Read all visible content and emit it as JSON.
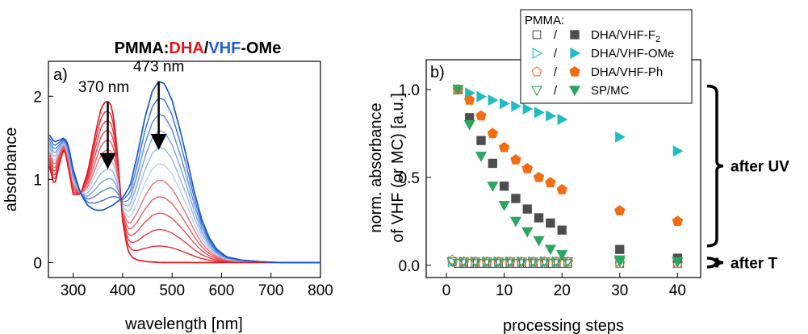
{
  "figure": {
    "title_parts": [
      {
        "text": "PMMA:",
        "color": "#000000"
      },
      {
        "text": "DHA",
        "color": "#e8141b"
      },
      {
        "text": "/",
        "color": "#000000"
      },
      {
        "text": "VHF",
        "color": "#1f5fd6"
      },
      {
        "text": "-OMe",
        "color": "#000000"
      }
    ]
  },
  "chart_data": [
    {
      "type": "line",
      "panel_label": "a)",
      "xlabel": "wavelength [nm]",
      "ylabel": "absorbance",
      "xlim": [
        250,
        800
      ],
      "ylim": [
        -0.18,
        2.42
      ],
      "x_ticks": [
        300,
        400,
        500,
        600,
        700,
        800
      ],
      "y_ticks": [
        0,
        1,
        2
      ],
      "grid": false,
      "annotations": [
        {
          "text": "370 nm",
          "x": 370,
          "color": "#e8141b"
        },
        {
          "text": "473 nm",
          "x": 473,
          "color": "#1f5fd6"
        }
      ],
      "arrows": [
        {
          "x": 370,
          "from": 1.94,
          "to": 1.22
        },
        {
          "x": 473,
          "from": 2.18,
          "to": 1.45
        }
      ],
      "colors": {
        "dha_start": "#f07a80",
        "dha_end": "#e01a22",
        "vhf_start": "#c9dcf5",
        "vhf_end": "#1657cc"
      },
      "series": [
        {
          "name": "",
          "color": "#1657cc",
          "x": [
            250,
            262,
            275,
            282,
            290,
            300,
            315,
            330,
            345,
            360,
            380,
            400,
            415,
            430,
            445,
            460,
            473,
            485,
            500,
            515,
            530,
            545,
            560,
            575,
            590,
            610,
            640,
            680,
            720,
            760,
            800
          ],
          "y": [
            1.55,
            1.45,
            1.48,
            1.5,
            1.42,
            1.12,
            0.83,
            0.68,
            0.63,
            0.63,
            0.69,
            0.78,
            0.92,
            1.3,
            1.74,
            2.06,
            2.18,
            2.15,
            1.95,
            1.62,
            1.25,
            0.85,
            0.52,
            0.3,
            0.16,
            0.07,
            0.03,
            0.01,
            0.0,
            0.0,
            0.0
          ]
        },
        {
          "name": "",
          "color": "#e01a22",
          "x": [
            250,
            262,
            275,
            282,
            290,
            300,
            315,
            330,
            345,
            355,
            362,
            370,
            378,
            385,
            393,
            400,
            410,
            420,
            430,
            450,
            480,
            520,
            600,
            700,
            800
          ],
          "y": [
            1.2,
            0.92,
            1.25,
            1.38,
            1.15,
            0.82,
            0.82,
            1.1,
            1.55,
            1.82,
            1.92,
            1.94,
            1.88,
            1.6,
            1.05,
            0.5,
            0.15,
            0.06,
            0.03,
            0.01,
            0.0,
            0.0,
            0.0,
            0.0,
            0.0
          ]
        }
      ]
    },
    {
      "type": "scatter",
      "panel_label": "b)",
      "xlabel": "processing steps",
      "ylabel_lines": [
        "norm. absorbance",
        "of VHF (or MC) [a.u.]"
      ],
      "xlim": [
        -3.5,
        44
      ],
      "ylim": [
        -0.07,
        1.17
      ],
      "x_ticks": [
        0,
        10,
        20,
        30,
        40
      ],
      "y_ticks": [
        0.0,
        0.5,
        1.0
      ],
      "y_tick_labels": [
        "0.0",
        "0.5",
        "1.0"
      ],
      "grid": false,
      "legend_title": "PMMA:",
      "legend_position": "top",
      "series": [
        {
          "name": "DHA/VHF-F",
          "subscript": "2",
          "marker": "square",
          "color": "#4d4d4d",
          "open_x": [
            1,
            2,
            3,
            4,
            5,
            6,
            7,
            8,
            9,
            10,
            11,
            12,
            13,
            14,
            15,
            16,
            17,
            18,
            19,
            20,
            21,
            30,
            40
          ],
          "open_y": [
            0.02,
            0.01,
            0.01,
            0.01,
            0.01,
            0.01,
            0.01,
            0.01,
            0.01,
            0.01,
            0.01,
            0.01,
            0.01,
            0.01,
            0.01,
            0.01,
            0.01,
            0.01,
            0.01,
            0.01,
            0.01,
            0.01,
            0.01
          ],
          "filled_x": [
            2,
            4,
            6,
            8,
            10,
            12,
            14,
            16,
            18,
            20,
            30,
            40
          ],
          "filled_y": [
            1.0,
            0.84,
            0.71,
            0.58,
            0.45,
            0.38,
            0.32,
            0.27,
            0.24,
            0.2,
            0.09,
            0.04
          ]
        },
        {
          "name": "DHA/VHF-OMe",
          "marker": "triangle-right",
          "color": "#1fbcc4",
          "open_x": [
            1,
            3,
            5,
            7,
            9,
            11,
            13,
            15,
            17,
            19,
            21,
            30,
            40
          ],
          "open_y": [
            0.02,
            0.02,
            0.02,
            0.02,
            0.02,
            0.02,
            0.02,
            0.02,
            0.02,
            0.02,
            0.02,
            0.02,
            0.02
          ],
          "filled_x": [
            2,
            4,
            6,
            8,
            10,
            12,
            14,
            16,
            18,
            20,
            30,
            40
          ],
          "filled_y": [
            1.0,
            0.98,
            0.96,
            0.94,
            0.92,
            0.905,
            0.89,
            0.87,
            0.85,
            0.83,
            0.73,
            0.65
          ]
        },
        {
          "name": "DHA/VHF-Ph",
          "marker": "pentagon",
          "color": "#f26d12",
          "open_x": [
            1,
            3,
            5,
            7,
            9,
            11,
            13,
            15,
            17,
            19,
            21,
            30,
            40
          ],
          "open_y": [
            0.03,
            0.02,
            0.02,
            0.02,
            0.02,
            0.02,
            0.02,
            0.02,
            0.02,
            0.02,
            0.02,
            0.01,
            0.01
          ],
          "filled_x": [
            2,
            4,
            6,
            8,
            10,
            12,
            14,
            16,
            18,
            20,
            30,
            40
          ],
          "filled_y": [
            1.0,
            0.94,
            0.85,
            0.75,
            0.67,
            0.6,
            0.55,
            0.5,
            0.47,
            0.43,
            0.31,
            0.25
          ]
        },
        {
          "name": "SP/MC",
          "marker": "triangle-down",
          "color": "#2ca55e",
          "open_x": [
            1,
            3,
            5,
            7,
            9,
            11,
            13,
            15,
            17,
            19,
            21,
            30,
            40
          ],
          "open_y": [
            0.02,
            0.02,
            0.02,
            0.02,
            0.02,
            0.02,
            0.02,
            0.02,
            0.02,
            0.02,
            0.02,
            0.02,
            0.02
          ],
          "filled_x": [
            2,
            4,
            6,
            8,
            10,
            12,
            14,
            16,
            18,
            20,
            30,
            40
          ],
          "filled_y": [
            1.0,
            0.8,
            0.62,
            0.45,
            0.34,
            0.25,
            0.19,
            0.14,
            0.09,
            0.06,
            0.03,
            0.02
          ]
        }
      ],
      "brackets": [
        {
          "label": "after UV",
          "from": 0.11,
          "to": 1.02
        },
        {
          "label": "after T",
          "from": -0.01,
          "to": 0.04
        }
      ]
    }
  ]
}
